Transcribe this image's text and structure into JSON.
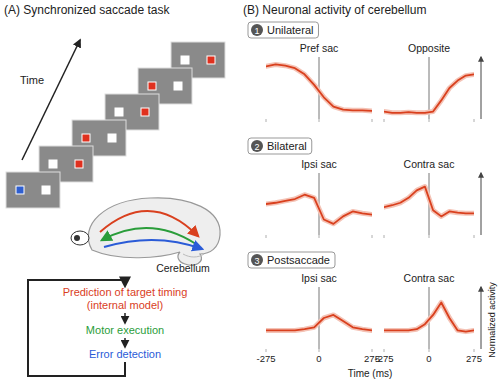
{
  "panel_a": {
    "title": "(A) Synchronized saccade task",
    "time_label": "Time",
    "screens": [
      {
        "left": "#2f5fd0",
        "right": "#ffffff"
      },
      {
        "left": "#ffffff",
        "right": "#e0301e"
      },
      {
        "left": "#e0301e",
        "right": "#ffffff"
      },
      {
        "left": "#ffffff",
        "right": "#e0301e"
      },
      {
        "left": "#e0301e",
        "right": "#ffffff"
      },
      {
        "left": "#ffffff",
        "right": "#e0301e"
      }
    ],
    "brain_label": "Cerebellum",
    "flow": [
      {
        "text": "Prediction of target timing",
        "color": "#d9401e"
      },
      {
        "text": "(internal model)",
        "color": "#d9401e"
      },
      {
        "text": "Motor execution",
        "color": "#2a9d3a"
      },
      {
        "text": "Error detection",
        "color": "#2a5bd7"
      }
    ]
  },
  "panel_b": {
    "title": "(B) Neuronal activity of cerebellum",
    "rows": [
      {
        "number": "1",
        "label": "Unilateral"
      },
      {
        "number": "2",
        "label": "Bilateral"
      },
      {
        "number": "3",
        "label": "Postsaccade"
      }
    ],
    "x_label": "Time (ms)",
    "y_label": "Normalized activity"
  },
  "chart_data": [
    {
      "type": "line",
      "title": "Pref sac",
      "x": [
        -275,
        -225,
        -175,
        -125,
        -75,
        -25,
        25,
        75,
        125,
        175,
        225,
        275
      ],
      "xlim": [
        -275,
        275
      ],
      "xticks": [
        -275,
        0,
        275
      ],
      "ylim": [
        0,
        1
      ],
      "tick_labels": false,
      "vlines": [
        0
      ],
      "series": [
        {
          "color": "#d9401e",
          "values": [
            0.85,
            0.88,
            0.86,
            0.82,
            0.72,
            0.55,
            0.35,
            0.2,
            0.15,
            0.14,
            0.14,
            0.13
          ]
        }
      ]
    },
    {
      "type": "line",
      "title": "Opposite",
      "x": [
        -275,
        -225,
        -175,
        -125,
        -75,
        -25,
        25,
        75,
        125,
        175,
        225,
        275
      ],
      "xlim": [
        -275,
        275
      ],
      "xticks": [
        -275,
        0,
        275
      ],
      "ylim": [
        0,
        1
      ],
      "tick_labels": false,
      "vlines": [
        0
      ],
      "series": [
        {
          "color": "#d9401e",
          "values": [
            0.12,
            0.1,
            0.1,
            0.11,
            0.1,
            0.1,
            0.12,
            0.3,
            0.5,
            0.62,
            0.7,
            0.72
          ]
        }
      ]
    },
    {
      "type": "line",
      "title": "Ipsi sac",
      "x": [
        -275,
        -225,
        -175,
        -125,
        -75,
        -25,
        25,
        75,
        125,
        175,
        225,
        275
      ],
      "xlim": [
        -275,
        275
      ],
      "xticks": [
        -275,
        0,
        275
      ],
      "ylim": [
        0,
        1
      ],
      "tick_labels": false,
      "vlines": [
        0
      ],
      "series": [
        {
          "color": "#d9401e",
          "values": [
            0.5,
            0.52,
            0.55,
            0.58,
            0.65,
            0.6,
            0.25,
            0.18,
            0.3,
            0.38,
            0.35,
            0.33
          ]
        }
      ]
    },
    {
      "type": "line",
      "title": "Contra sac",
      "x": [
        -275,
        -225,
        -175,
        -125,
        -75,
        -25,
        25,
        75,
        125,
        175,
        225,
        275
      ],
      "xlim": [
        -275,
        275
      ],
      "xticks": [
        -275,
        0,
        275
      ],
      "ylim": [
        0,
        1
      ],
      "tick_labels": false,
      "vlines": [
        0
      ],
      "series": [
        {
          "color": "#d9401e",
          "values": [
            0.45,
            0.48,
            0.52,
            0.6,
            0.72,
            0.78,
            0.4,
            0.3,
            0.38,
            0.36,
            0.35,
            0.35
          ]
        }
      ]
    },
    {
      "type": "line",
      "title": "Ipsi sac",
      "x": [
        -275,
        -225,
        -175,
        -125,
        -75,
        -25,
        25,
        75,
        125,
        175,
        225,
        275
      ],
      "xlim": [
        -275,
        275
      ],
      "xticks": [
        -275,
        0,
        275
      ],
      "ylim": [
        0,
        1
      ],
      "tick_labels": "x",
      "vlines": [
        0
      ],
      "series": [
        {
          "color": "#d9401e",
          "values": [
            0.3,
            0.3,
            0.3,
            0.3,
            0.32,
            0.35,
            0.5,
            0.55,
            0.45,
            0.35,
            0.32,
            0.3
          ]
        }
      ]
    },
    {
      "type": "line",
      "title": "Contra sac",
      "x": [
        -275,
        -225,
        -175,
        -125,
        -75,
        -25,
        25,
        75,
        125,
        175,
        225,
        275
      ],
      "xlim": [
        -275,
        275
      ],
      "xticks": [
        -275,
        0,
        275
      ],
      "ylim": [
        0,
        1
      ],
      "tick_labels": "x",
      "vlines": [
        0
      ],
      "series": [
        {
          "color": "#d9401e",
          "values": [
            0.3,
            0.3,
            0.3,
            0.3,
            0.32,
            0.4,
            0.55,
            0.75,
            0.5,
            0.3,
            0.28,
            0.3
          ]
        }
      ]
    }
  ]
}
